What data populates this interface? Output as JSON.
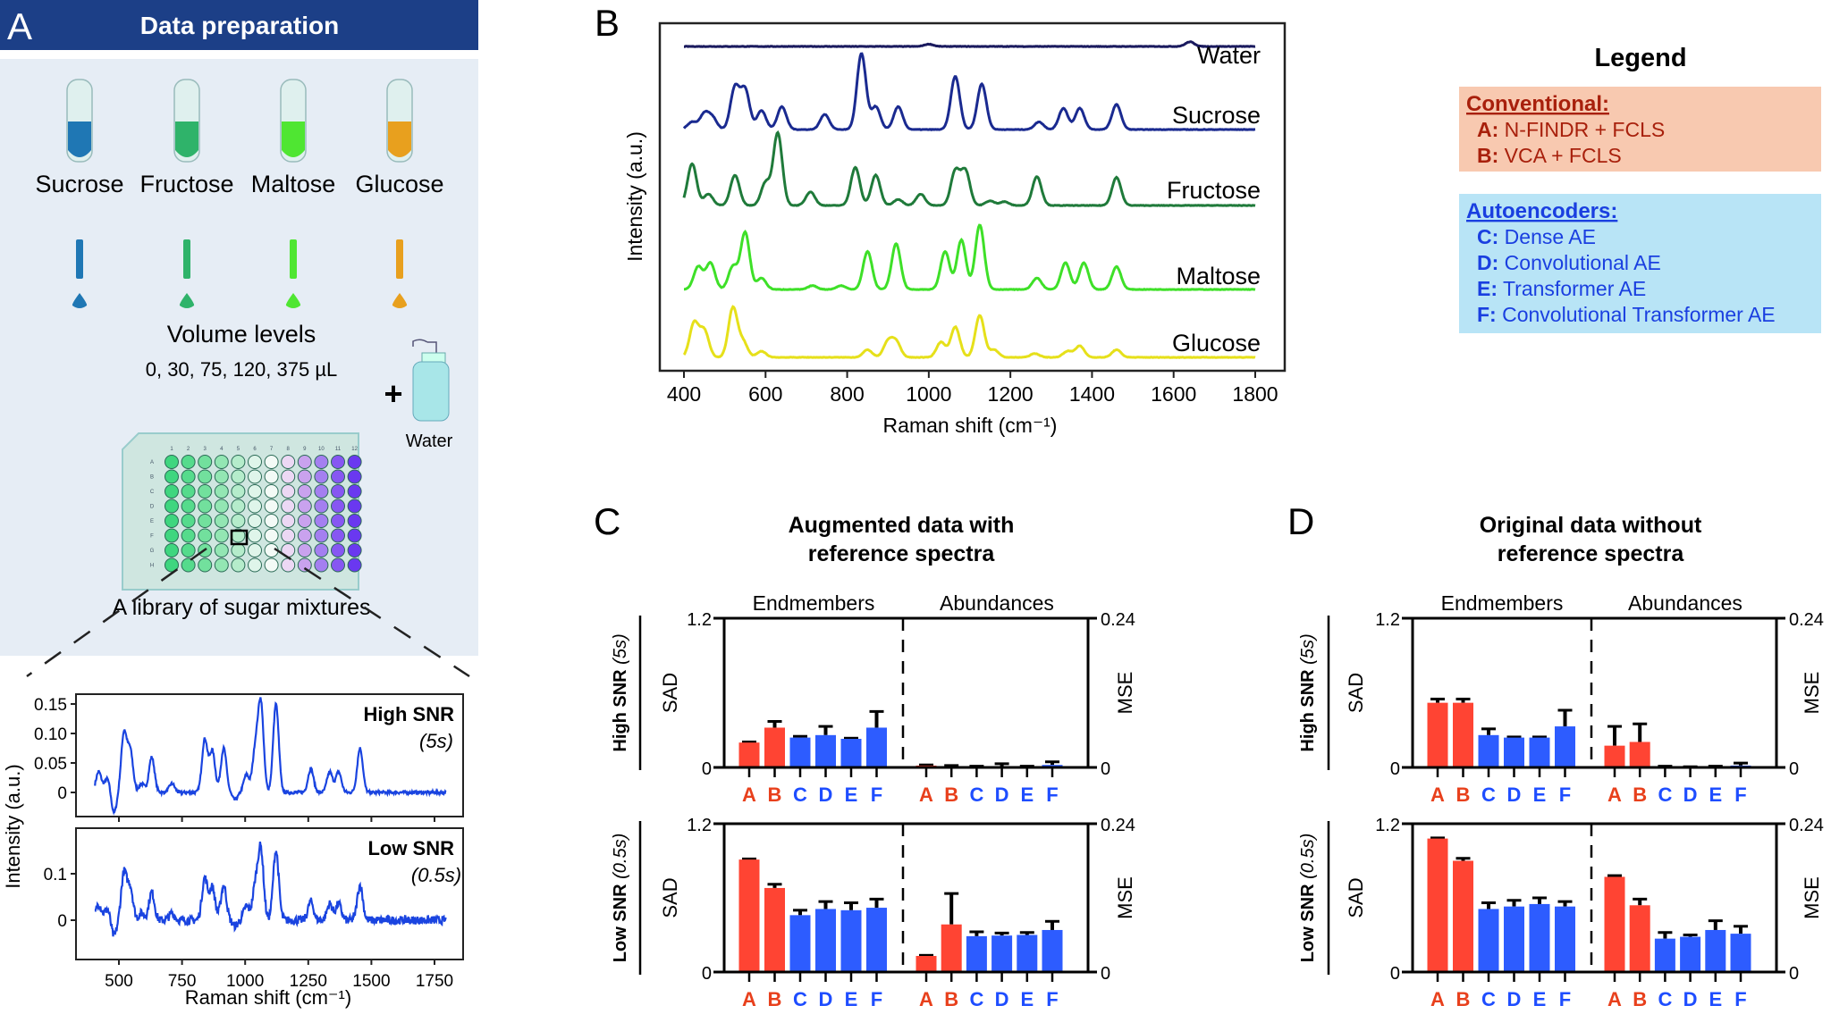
{
  "panel_a": {
    "letter": "A",
    "title": "Data preparation",
    "sugars": [
      {
        "name": "Sucrose",
        "color": "#1f77b4"
      },
      {
        "name": "Fructose",
        "color": "#2fb36a"
      },
      {
        "name": "Maltose",
        "color": "#4fe632"
      },
      {
        "name": "Glucose",
        "color": "#e8a01e"
      }
    ],
    "volume_title": "Volume levels",
    "volume_values": "0, 30, 75, 120, 375 µL",
    "plus": "+",
    "water_label": "Water",
    "plate_rows": [
      "A",
      "B",
      "C",
      "D",
      "E",
      "F",
      "G",
      "H"
    ],
    "plate_cols": [
      "1",
      "2",
      "3",
      "4",
      "5",
      "6",
      "7",
      "8",
      "9",
      "10",
      "11",
      "12"
    ],
    "plate_caption": "A library of sugar mixtures"
  },
  "panel_b": {
    "letter": "B"
  },
  "panel_c": {
    "letter": "C",
    "title_line1": "Augmented data with",
    "title_line2": "reference spectra"
  },
  "panel_d": {
    "letter": "D",
    "title_line1": "Original data without",
    "title_line2": "reference spectra"
  },
  "legend": {
    "title": "Legend",
    "conventional": {
      "heading": "Conventional:",
      "bg": "#f8c9b0",
      "color": "#a8200c",
      "items": [
        {
          "key": "A:",
          "label": "N-FINDR + FCLS"
        },
        {
          "key": "B:",
          "label": "VCA + FCLS"
        }
      ]
    },
    "autoencoders": {
      "heading": "Autoencoders:",
      "bg": "#b8e4f6",
      "color": "#1a3fe0",
      "items": [
        {
          "key": "C:",
          "label": "Dense AE"
        },
        {
          "key": "D:",
          "label": "Convolutional AE"
        },
        {
          "key": "E:",
          "label": "Transformer AE"
        },
        {
          "key": "F:",
          "label": "Convolutional Transformer AE"
        }
      ]
    }
  },
  "colors": {
    "conventional_bar": "#ff4433",
    "autoencoder_bar": "#2d5cff",
    "conventional_label": "#e8401c",
    "autoencoder_label": "#1e4dff"
  },
  "chart_data": [
    {
      "id": "A-mixture-spectra",
      "type": "line",
      "xlabel": "Raman shift (cm⁻¹)",
      "ylabel": "Intensity (a.u.)",
      "xlim": [
        400,
        1800
      ],
      "xticks": [
        "500",
        "750",
        "1000",
        "1250",
        "1500",
        "1750"
      ],
      "color": "#1a44e0",
      "peaks": [
        [
          420,
          0.035
        ],
        [
          455,
          0.025
        ],
        [
          480,
          -0.035
        ],
        [
          520,
          0.1
        ],
        [
          545,
          0.07
        ],
        [
          590,
          0.015
        ],
        [
          630,
          0.06
        ],
        [
          710,
          0.015
        ],
        [
          840,
          0.09
        ],
        [
          870,
          0.07
        ],
        [
          915,
          0.075
        ],
        [
          960,
          -0.012
        ],
        [
          1005,
          0.03
        ],
        [
          1040,
          0.07
        ],
        [
          1062,
          0.15
        ],
        [
          1122,
          0.15
        ],
        [
          1260,
          0.04
        ],
        [
          1335,
          0.035
        ],
        [
          1370,
          0.035
        ],
        [
          1455,
          0.075
        ]
      ],
      "subplots": [
        {
          "label": "High SNR",
          "sublabel": "(5s)",
          "ylim": [
            -0.04,
            0.16
          ],
          "yticks": [
            0.15,
            0.1,
            0.05,
            0
          ],
          "ytick_labels": [
            "0.15",
            "0.10",
            "0.05",
            "0"
          ]
        },
        {
          "label": "Low SNR",
          "sublabel": "(0.5s)",
          "ylim": [
            -0.065,
            0.19
          ],
          "yticks": [
            0.1,
            0
          ],
          "ytick_labels": [
            "0.1",
            "0"
          ]
        }
      ]
    },
    {
      "id": "B-reference-spectra",
      "type": "line",
      "xlabel": "Raman shift (cm⁻¹)",
      "ylabel": "Intensity (a.u.)",
      "xlim": [
        400,
        1800
      ],
      "xticks": [
        "400",
        "600",
        "800",
        "1000",
        "1200",
        "1400",
        "1600",
        "1800"
      ],
      "series": [
        {
          "name": "Water",
          "color": "#1a1a5e",
          "peaks": [
            [
              1000,
              0.03
            ],
            [
              1640,
              0.06
            ]
          ]
        },
        {
          "name": "Sucrose",
          "color": "#1a2a90",
          "peaks": [
            [
              420,
              0.1
            ],
            [
              450,
              0.2
            ],
            [
              470,
              0.15
            ],
            [
              525,
              0.55
            ],
            [
              550,
              0.52
            ],
            [
              590,
              0.25
            ],
            [
              640,
              0.3
            ],
            [
              745,
              0.2
            ],
            [
              835,
              1.0
            ],
            [
              870,
              0.3
            ],
            [
              925,
              0.3
            ],
            [
              1065,
              0.7
            ],
            [
              1130,
              0.6
            ],
            [
              1270,
              0.1
            ],
            [
              1330,
              0.28
            ],
            [
              1370,
              0.28
            ],
            [
              1460,
              0.33
            ]
          ]
        },
        {
          "name": "Fructose",
          "color": "#1f7a3a",
          "peaks": [
            [
              420,
              0.55
            ],
            [
              460,
              0.15
            ],
            [
              525,
              0.4
            ],
            [
              600,
              0.3
            ],
            [
              630,
              0.95
            ],
            [
              710,
              0.18
            ],
            [
              820,
              0.5
            ],
            [
              870,
              0.4
            ],
            [
              925,
              0.08
            ],
            [
              980,
              0.15
            ],
            [
              1065,
              0.45
            ],
            [
              1090,
              0.45
            ],
            [
              1150,
              0.06
            ],
            [
              1185,
              0.05
            ],
            [
              1265,
              0.38
            ],
            [
              1460,
              0.37
            ]
          ]
        },
        {
          "name": "Maltose",
          "color": "#3ee028",
          "peaks": [
            [
              435,
              0.3
            ],
            [
              465,
              0.35
            ],
            [
              520,
              0.3
            ],
            [
              550,
              0.75
            ],
            [
              590,
              0.15
            ],
            [
              715,
              0.05
            ],
            [
              785,
              0.05
            ],
            [
              850,
              0.5
            ],
            [
              920,
              0.6
            ],
            [
              1040,
              0.5
            ],
            [
              1080,
              0.65
            ],
            [
              1125,
              0.85
            ],
            [
              1265,
              0.15
            ],
            [
              1335,
              0.35
            ],
            [
              1380,
              0.35
            ],
            [
              1460,
              0.3
            ]
          ]
        },
        {
          "name": "Glucose",
          "color": "#e6e01a",
          "peaks": [
            [
              425,
              0.45
            ],
            [
              450,
              0.35
            ],
            [
              520,
              0.65
            ],
            [
              545,
              0.2
            ],
            [
              590,
              0.08
            ],
            [
              850,
              0.1
            ],
            [
              900,
              0.2
            ],
            [
              920,
              0.2
            ],
            [
              1030,
              0.2
            ],
            [
              1065,
              0.4
            ],
            [
              1125,
              0.55
            ],
            [
              1160,
              0.1
            ],
            [
              1260,
              0.05
            ],
            [
              1340,
              0.08
            ],
            [
              1370,
              0.15
            ],
            [
              1460,
              0.1
            ]
          ]
        }
      ]
    },
    {
      "id": "C-augmented",
      "type": "bar",
      "categories": [
        "A",
        "B",
        "C",
        "D",
        "E",
        "F"
      ],
      "groups": [
        "Endmembers",
        "Abundances"
      ],
      "left_axis": {
        "label": "SAD",
        "ylim": [
          0,
          1.2
        ],
        "ticks": [
          "0",
          "1.2"
        ]
      },
      "right_axis": {
        "label": "MSE",
        "ylim": [
          0,
          0.24
        ],
        "ticks": [
          "0",
          "0.24"
        ]
      },
      "rows": [
        {
          "label": "High SNR",
          "sublabel": "(5s)",
          "sad": [
            0.2,
            0.32,
            0.24,
            0.26,
            0.23,
            0.32
          ],
          "sad_err": [
            0.005,
            0.05,
            0.01,
            0.07,
            0.005,
            0.13
          ],
          "mse": [
            0.003,
            0.002,
            0.001,
            0.002,
            0.001,
            0.004
          ],
          "mse_err": [
            0.001,
            0.001,
            0.001,
            0.004,
            0.001,
            0.005
          ]
        },
        {
          "label": "Low SNR",
          "sublabel": "(0.5s)",
          "sad": [
            0.91,
            0.68,
            0.46,
            0.51,
            0.5,
            0.52
          ],
          "sad_err": [
            0.005,
            0.03,
            0.04,
            0.06,
            0.06,
            0.07
          ],
          "mse": [
            0.026,
            0.077,
            0.058,
            0.059,
            0.06,
            0.068
          ],
          "mse_err": [
            0.001,
            0.05,
            0.007,
            0.004,
            0.004,
            0.014
          ]
        }
      ]
    },
    {
      "id": "D-original",
      "type": "bar",
      "categories": [
        "A",
        "B",
        "C",
        "D",
        "E",
        "F"
      ],
      "groups": [
        "Endmembers",
        "Abundances"
      ],
      "left_axis": {
        "label": "SAD",
        "ylim": [
          0,
          1.2
        ],
        "ticks": [
          "0",
          "1.2"
        ]
      },
      "right_axis": {
        "label": "MSE",
        "ylim": [
          0,
          0.24
        ],
        "ticks": [
          "0",
          "0.24"
        ]
      },
      "rows": [
        {
          "label": "High SNR",
          "sublabel": "(5s)",
          "sad": [
            0.52,
            0.52,
            0.26,
            0.24,
            0.24,
            0.33
          ],
          "sad_err": [
            0.03,
            0.03,
            0.05,
            0.005,
            0.005,
            0.13
          ],
          "mse": [
            0.035,
            0.041,
            0.001,
            0.0005,
            0.001,
            0.003
          ],
          "mse_err": [
            0.031,
            0.029,
            0.001,
            0.0005,
            0.001,
            0.004
          ]
        },
        {
          "label": "Low SNR",
          "sublabel": "(0.5s)",
          "sad": [
            1.08,
            0.9,
            0.51,
            0.53,
            0.55,
            0.53
          ],
          "sad_err": [
            0.005,
            0.02,
            0.05,
            0.05,
            0.05,
            0.04
          ],
          "mse": [
            0.154,
            0.108,
            0.054,
            0.057,
            0.068,
            0.062
          ],
          "mse_err": [
            0.002,
            0.01,
            0.01,
            0.003,
            0.015,
            0.012
          ]
        }
      ]
    }
  ]
}
